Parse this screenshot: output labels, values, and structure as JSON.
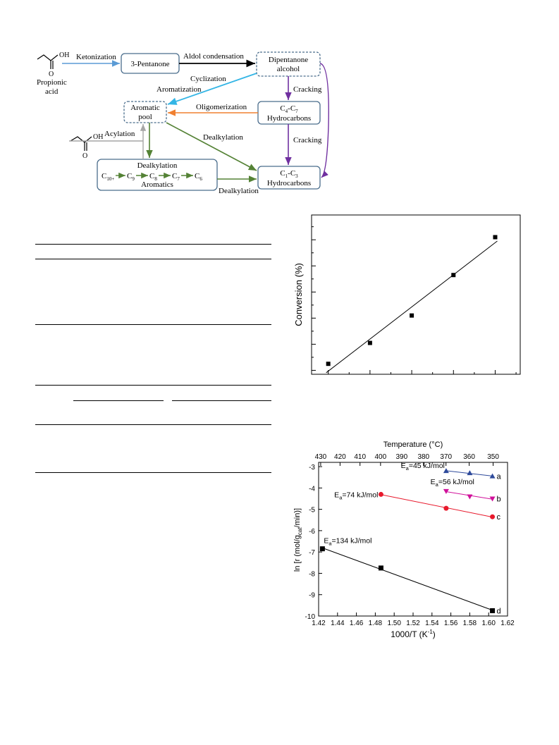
{
  "scheme": {
    "nodes": {
      "propionic_acid": "Propionic acid",
      "pentanone": "3-Pentanone",
      "dipentanone": "Dipentanone alcohol",
      "aromatic_pool": "Aromatic pool",
      "c4c7": "C4-C7 Hydrocarbons",
      "c1c3": "C1-C3 Hydrocarbons",
      "aromatics": "Aromatics",
      "aromatics_chain": "C10+ → C9 → C8 → C7 → C6"
    },
    "edges": {
      "ketonization": "Ketonization",
      "aldol": "Aldol condensation",
      "cyclization": "Cyclization",
      "aromatization": "Aromatization",
      "cracking1": "Cracking",
      "cracking2": "Cracking",
      "oligomerization": "Oligomerization",
      "acylation": "Acylation",
      "dealkylation_diag": "Dealkylation",
      "dealkylation_top": "Dealkylation",
      "dealkylation_bottom": "Dealkylation"
    },
    "oh": "OH",
    "o": "O",
    "colors": {
      "ketonization": "#5b9bd5",
      "aldol": "#000000",
      "cyclization": "#33b5e5",
      "cracking": "#7030a0",
      "oligomerization": "#f08030",
      "acylation": "#a6a6a6",
      "dealkylation": "#548235",
      "box": "#4a6d8c"
    }
  },
  "conversion_plot": {
    "ylabel": "Conversion (%)"
  },
  "arrhenius_plot": {
    "top_axis_label": "Temperature (°C)",
    "top_ticks": [
      "430",
      "420",
      "410",
      "400",
      "390",
      "380",
      "370",
      "360",
      "350"
    ],
    "xlabel": "1000/T (K-1)",
    "ylabel": "ln [r (mol/gcat/min)]"
  },
  "chart_data": [
    {
      "type": "scatter",
      "title": "",
      "xlabel": "",
      "ylabel": "Conversion (%)",
      "x": [
        1,
        2,
        3,
        4,
        5
      ],
      "y": [
        0.5,
        2.1,
        4.2,
        7.3,
        10.2
      ],
      "xlim": [
        0.6,
        5.6
      ],
      "ylim": [
        -0.3,
        11.9
      ],
      "fit_line": true,
      "grid": false,
      "tick_labels_visible": false
    },
    {
      "type": "scatter",
      "title": "",
      "xlabel": "1000/T (K-1)",
      "ylabel": "ln [r (mol/gcat/min)]",
      "xlim": [
        1.42,
        1.62
      ],
      "ylim": [
        -10,
        -2.8
      ],
      "xticks": [
        1.42,
        1.44,
        1.46,
        1.48,
        1.5,
        1.52,
        1.54,
        1.56,
        1.58,
        1.6,
        1.62
      ],
      "yticks": [
        -10,
        -9,
        -8,
        -7,
        -6,
        -5,
        -4,
        -3
      ],
      "top_axis": {
        "label": "Temperature (°C)",
        "ticks_celsius": [
          430,
          420,
          410,
          400,
          390,
          380,
          370,
          360,
          350
        ]
      },
      "series": [
        {
          "name": "a",
          "color": "#2e4a9b",
          "marker": "triangle-up",
          "annotation": "Ea=45 kJ/mol",
          "x": [
            1.555,
            1.58,
            1.604
          ],
          "y": [
            -3.2,
            -3.3,
            -3.45
          ]
        },
        {
          "name": "b",
          "color": "#d0109a",
          "marker": "triangle-down",
          "annotation": "Ea=56 kJ/mol",
          "x": [
            1.555,
            1.58,
            1.604
          ],
          "y": [
            -4.15,
            -4.4,
            -4.5
          ]
        },
        {
          "name": "c",
          "color": "#e8192c",
          "marker": "circle",
          "annotation": "Ea=74 kJ/mol",
          "x": [
            1.486,
            1.555,
            1.604
          ],
          "y": [
            -4.3,
            -4.95,
            -5.35
          ]
        },
        {
          "name": "d",
          "color": "#000000",
          "marker": "square",
          "annotation": "Ea=134 kJ/mol",
          "x": [
            1.424,
            1.486,
            1.604
          ],
          "y": [
            -6.85,
            -7.75,
            -9.75
          ]
        }
      ],
      "grid": false
    }
  ]
}
